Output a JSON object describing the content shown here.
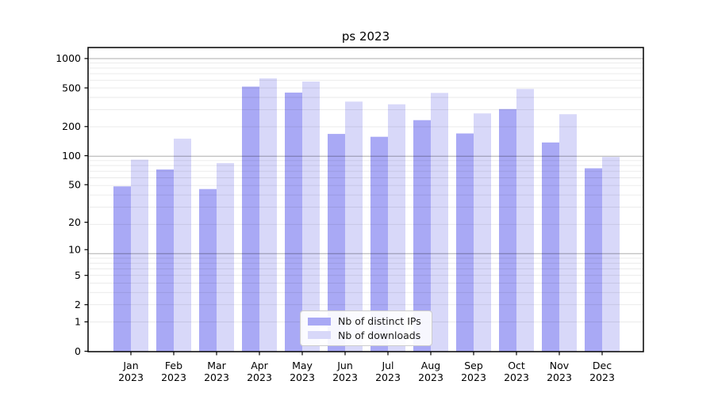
{
  "chart_data": {
    "type": "bar",
    "title": "ps 2023",
    "categories": [
      "Jan",
      "Feb",
      "Mar",
      "Apr",
      "May",
      "Jun",
      "Jul",
      "Aug",
      "Sep",
      "Oct",
      "Nov",
      "Dec"
    ],
    "category_second_line": "2023",
    "series": [
      {
        "name": "Nb of distinct IPs",
        "color": "#a9a9f5",
        "values": [
          48,
          72,
          45,
          515,
          447,
          168,
          157,
          233,
          170,
          303,
          137,
          74
        ]
      },
      {
        "name": "Nb of downloads",
        "color": "#d8d8f9",
        "values": [
          91,
          150,
          84,
          625,
          580,
          361,
          339,
          444,
          273,
          488,
          268,
          97
        ]
      }
    ],
    "yscale": "log1p",
    "y_ticks": [
      0,
      1,
      2,
      5,
      10,
      20,
      50,
      100,
      200,
      500,
      1000
    ],
    "ylim": [
      0,
      1300
    ],
    "xlabel": "",
    "ylabel": "",
    "grid": {
      "horizontal": true,
      "minor": true,
      "drawn_over_bars": true
    },
    "legend": {
      "position": "lower center"
    }
  }
}
